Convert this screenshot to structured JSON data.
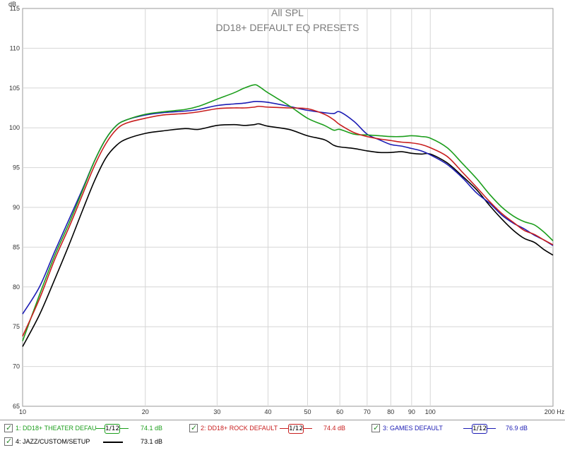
{
  "chart_data": {
    "type": "line",
    "title": "All SPL",
    "subtitle": "DD18+ DEFAULT EQ PRESETS",
    "ylabel": "dB",
    "xlabel": "",
    "x_unit": "Hz",
    "x_scale": "log",
    "xlim": [
      10,
      200
    ],
    "ylim": [
      65,
      115
    ],
    "grid": true,
    "x_ticks": [
      {
        "v": 10,
        "label": "10"
      },
      {
        "v": 20,
        "label": "20"
      },
      {
        "v": 30,
        "label": "30"
      },
      {
        "v": 40,
        "label": "40"
      },
      {
        "v": 50,
        "label": "50"
      },
      {
        "v": 60,
        "label": "60"
      },
      {
        "v": 70,
        "label": "70"
      },
      {
        "v": 80,
        "label": "80"
      },
      {
        "v": 90,
        "label": "90"
      },
      {
        "v": 100,
        "label": "100"
      },
      {
        "v": 200,
        "label": "200 Hz"
      }
    ],
    "y_ticks": [
      65,
      70,
      75,
      80,
      85,
      90,
      95,
      100,
      105,
      110,
      115
    ],
    "series": [
      {
        "name": "1: DD18+ THEATER DEFAU",
        "color": "#1c9e1c",
        "legend_value": "74.1 dB",
        "x": [
          10,
          11,
          12,
          13,
          14,
          15,
          16,
          17,
          18,
          20,
          22,
          25,
          27,
          30,
          33,
          35,
          37,
          38,
          40,
          45,
          50,
          55,
          58,
          60,
          65,
          70,
          75,
          80,
          85,
          90,
          95,
          100,
          110,
          120,
          130,
          140,
          150,
          160,
          170,
          180,
          190,
          200
        ],
        "y": [
          73.2,
          79,
          84,
          88,
          92,
          95.8,
          98.6,
          100.3,
          101,
          101.7,
          102,
          102.3,
          102.7,
          103.6,
          104.4,
          105,
          105.4,
          105.2,
          104.4,
          102.8,
          101.2,
          100.3,
          99.7,
          99.8,
          99.2,
          99.1,
          99,
          98.9,
          98.9,
          99,
          98.9,
          98.7,
          97.5,
          95.5,
          93.6,
          91.6,
          90,
          88.9,
          88.2,
          87.8,
          86.9,
          85.8
        ]
      },
      {
        "name": "2: DD18+ ROCK DEFAULT",
        "color": "#c81e1e",
        "legend_value": "74.4 dB",
        "x": [
          10,
          11,
          12,
          13,
          14,
          15,
          16,
          17,
          18,
          20,
          22,
          25,
          27,
          30,
          33,
          35,
          37,
          38,
          40,
          45,
          50,
          55,
          58,
          60,
          65,
          70,
          75,
          80,
          85,
          90,
          95,
          100,
          110,
          120,
          130,
          140,
          150,
          160,
          170,
          180,
          190,
          200
        ],
        "y": [
          73.8,
          78.5,
          83.5,
          87.5,
          91.5,
          95.2,
          98,
          99.8,
          100.6,
          101.2,
          101.6,
          101.8,
          102,
          102.4,
          102.5,
          102.5,
          102.6,
          102.7,
          102.6,
          102.5,
          102.4,
          101.7,
          101,
          100.4,
          99.4,
          98.9,
          98.6,
          98.4,
          98.2,
          98.1,
          97.9,
          97.5,
          96.4,
          94.4,
          92.5,
          90.7,
          89.2,
          88.1,
          87.1,
          86.6,
          85.9,
          85.3
        ]
      },
      {
        "name": "3: GAMES DEFAULT",
        "color": "#1c1cb4",
        "legend_value": "76.9 dB",
        "x": [
          10,
          11,
          12,
          13,
          14,
          15,
          16,
          17,
          18,
          20,
          22,
          25,
          27,
          30,
          33,
          35,
          37,
          38,
          40,
          45,
          50,
          55,
          58,
          60,
          65,
          70,
          75,
          80,
          85,
          90,
          95,
          100,
          110,
          120,
          130,
          140,
          150,
          160,
          170,
          180,
          190,
          200
        ],
        "y": [
          76.6,
          80,
          84.5,
          88.5,
          92.2,
          95.8,
          98.6,
          100.3,
          101,
          101.6,
          101.9,
          102.1,
          102.3,
          102.8,
          103,
          103.1,
          103.3,
          103.3,
          103.2,
          102.7,
          102.2,
          101.9,
          101.8,
          102,
          100.8,
          99.2,
          98.5,
          97.9,
          97.7,
          97.4,
          97.1,
          96.6,
          95.4,
          93.7,
          91.8,
          90.5,
          89,
          88,
          87.3,
          86.5,
          85.9,
          85.2
        ]
      },
      {
        "name": "4: JAZZ/CUSTOM/SETUP",
        "color": "#000000",
        "legend_value": "73.1 dB",
        "x": [
          10,
          11,
          12,
          13,
          14,
          15,
          16,
          17,
          18,
          20,
          22,
          25,
          27,
          30,
          33,
          35,
          37,
          38,
          40,
          45,
          50,
          55,
          58,
          60,
          65,
          70,
          75,
          80,
          85,
          90,
          95,
          100,
          110,
          120,
          130,
          140,
          150,
          160,
          170,
          180,
          190,
          200
        ],
        "y": [
          72.5,
          76.5,
          81,
          85.3,
          89.5,
          93.3,
          96.2,
          97.8,
          98.6,
          99.3,
          99.6,
          99.9,
          99.8,
          100.3,
          100.4,
          100.3,
          100.4,
          100.5,
          100.2,
          99.8,
          99,
          98.5,
          97.8,
          97.6,
          97.4,
          97.1,
          96.9,
          96.9,
          97,
          96.8,
          96.7,
          96.7,
          95.6,
          93.9,
          92.2,
          90.2,
          88.5,
          87.1,
          86.1,
          85.6,
          84.7,
          84
        ]
      }
    ]
  },
  "legend": {
    "smoothing": "1/12",
    "items": [
      {
        "label": "1: DD18+ THEATER DEFAU",
        "value": "74.1 dB"
      },
      {
        "label": "2: DD18+ ROCK DEFAULT",
        "value": "74.4 dB"
      },
      {
        "label": "3: GAMES DEFAULT",
        "value": "76.9 dB"
      },
      {
        "label": "4: JAZZ/CUSTOM/SETUP",
        "value": "73.1 dB"
      }
    ]
  }
}
